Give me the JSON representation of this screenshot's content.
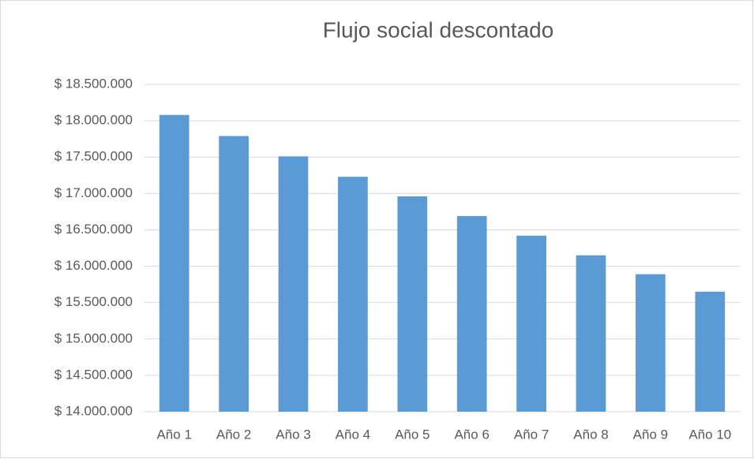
{
  "chart_data": {
    "type": "bar",
    "title": "Flujo social descontado",
    "categories": [
      "Año 1",
      "Año 2",
      "Año 3",
      "Año 4",
      "Año 5",
      "Año 6",
      "Año 7",
      "Año 8",
      "Año 9",
      "Año 10"
    ],
    "values": [
      18080000,
      17790000,
      17510000,
      17230000,
      16960000,
      16690000,
      16420000,
      16150000,
      15890000,
      15650000
    ],
    "color": "#5b9bd5",
    "ylim": [
      14000000,
      18500000
    ],
    "yticks": [
      {
        "value": 14000000,
        "label": "$ 14.000.000"
      },
      {
        "value": 14500000,
        "label": "$ 14.500.000"
      },
      {
        "value": 15000000,
        "label": "$ 15.000.000"
      },
      {
        "value": 15500000,
        "label": "$ 15.500.000"
      },
      {
        "value": 16000000,
        "label": "$ 16.000.000"
      },
      {
        "value": 16500000,
        "label": "$ 16.500.000"
      },
      {
        "value": 17000000,
        "label": "$ 17.000.000"
      },
      {
        "value": 17500000,
        "label": "$ 17.500.000"
      },
      {
        "value": 18000000,
        "label": "$ 18.000.000"
      },
      {
        "value": 18500000,
        "label": "$ 18.500.000"
      }
    ],
    "grid": true
  }
}
